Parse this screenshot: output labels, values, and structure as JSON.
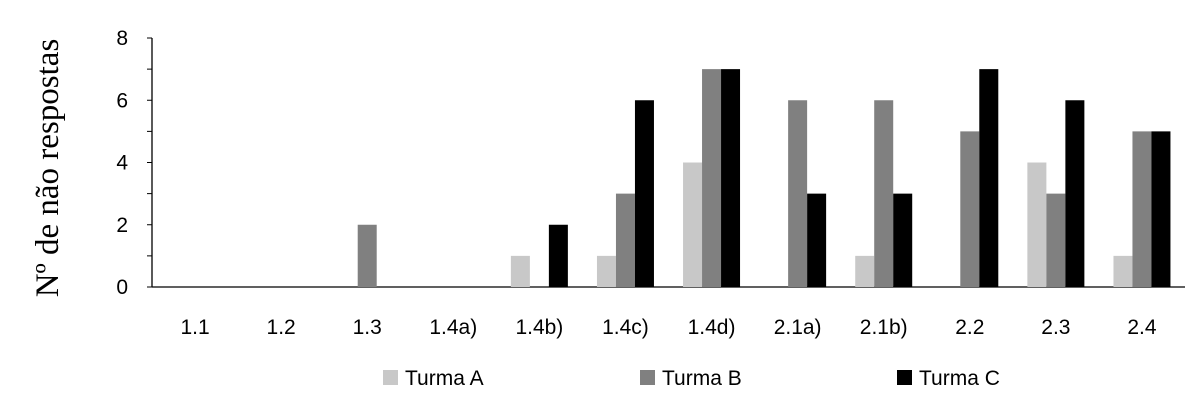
{
  "chart_data": {
    "type": "bar",
    "title": "",
    "xlabel": "",
    "ylabel": "Nº de não respostas",
    "ylim": [
      0,
      8
    ],
    "yticks": [
      0,
      2,
      4,
      6,
      8
    ],
    "grid": false,
    "legend_position": "bottom",
    "categories": [
      "1.1",
      "1.2",
      "1.3",
      "1.4a)",
      "1.4b)",
      "1.4c)",
      "1.4d)",
      "2.1a)",
      "2.1b)",
      "2.2",
      "2.3",
      "2.4"
    ],
    "series": [
      {
        "name": "Turma A",
        "color": "#c8c8c8",
        "values": [
          0,
          0,
          0,
          0,
          1,
          1,
          4,
          0,
          1,
          0,
          4,
          1
        ]
      },
      {
        "name": "Turma B",
        "color": "#808080",
        "values": [
          0,
          0,
          2,
          0,
          0,
          3,
          7,
          6,
          6,
          5,
          3,
          5
        ]
      },
      {
        "name": "Turma C",
        "color": "#000000",
        "values": [
          0,
          0,
          0,
          0,
          2,
          6,
          7,
          3,
          3,
          7,
          6,
          5
        ]
      }
    ]
  }
}
